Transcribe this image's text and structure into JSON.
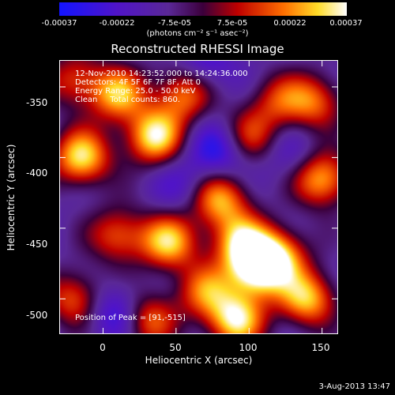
{
  "colorbar": {
    "ticks": [
      "-0.00037",
      "-0.00022",
      "-7.5e-05",
      "7.5e-05",
      "0.00022",
      "0.00037"
    ],
    "unit_text": "(photons cm⁻² s⁻¹ asec⁻²)",
    "range": [
      -0.00037,
      0.00037
    ]
  },
  "annotations": {
    "time": "12-Nov-2010 14:23:52.000 to 14:24:36.000",
    "detectors": "Detectors: 4F 5F 6F 7F 8F, Att 0",
    "energy": "Energy Range: 25.0 - 50.0 keV",
    "clean": "Clean     Total counts: 860.",
    "peak": "Position of Peak = [91,-515]"
  },
  "timestamp": "3-Aug-2013 13:47",
  "chart_data": {
    "type": "heatmap",
    "title": "Reconstructed RHESSI Image",
    "xlabel": "Heliocentric X (arcsec)",
    "ylabel": "Heliocentric Y (arcsec)",
    "xlim": [
      -30,
      161
    ],
    "ylim": [
      -525,
      -331
    ],
    "x_ticks": [
      "0",
      "50",
      "100",
      "150"
    ],
    "y_ticks": [
      "-350",
      "-400",
      "-450",
      "-500"
    ],
    "x_tick_values": [
      0,
      50,
      100,
      150
    ],
    "y_tick_values": [
      -350,
      -400,
      -450,
      -500
    ],
    "colormap": "rainbow-hot (blue-purple-red-orange-yellow-white)",
    "peak_position": [
      91,
      -515
    ],
    "grid": false,
    "hotspots": [
      {
        "x": -15,
        "y": -400,
        "value": 0.00037
      },
      {
        "x": 10,
        "y": -355,
        "value": 0.0003
      },
      {
        "x": 35,
        "y": -385,
        "value": 0.00037
      },
      {
        "x": 55,
        "y": -355,
        "value": 0.00025
      },
      {
        "x": 45,
        "y": -460,
        "value": 0.00033
      },
      {
        "x": 10,
        "y": -455,
        "value": 0.00022
      },
      {
        "x": 80,
        "y": -430,
        "value": 0.0003
      },
      {
        "x": 95,
        "y": -460,
        "value": 0.0003
      },
      {
        "x": 105,
        "y": -480,
        "value": 0.00037
      },
      {
        "x": 120,
        "y": -470,
        "value": 0.0003
      },
      {
        "x": 150,
        "y": -415,
        "value": 0.00033
      },
      {
        "x": 140,
        "y": -500,
        "value": 0.00033
      },
      {
        "x": 145,
        "y": -360,
        "value": 0.00022
      },
      {
        "x": 100,
        "y": -385,
        "value": 0.00018
      },
      {
        "x": 120,
        "y": -360,
        "value": 0.00015
      },
      {
        "x": -20,
        "y": -500,
        "value": 0.00022
      },
      {
        "x": 30,
        "y": -515,
        "value": 0.00025
      },
      {
        "x": 91,
        "y": -515,
        "value": 0.00037
      },
      {
        "x": 70,
        "y": -495,
        "value": 0.00022
      },
      {
        "x": -20,
        "y": -345,
        "value": 0.00018
      }
    ],
    "coldspots": [
      {
        "x": 80,
        "y": -395,
        "value": -0.0003
      },
      {
        "x": 10,
        "y": -510,
        "value": -0.0003
      },
      {
        "x": 70,
        "y": -335,
        "value": -0.00022
      },
      {
        "x": 130,
        "y": -400,
        "value": -0.00018
      },
      {
        "x": 55,
        "y": -420,
        "value": -0.00018
      }
    ]
  }
}
